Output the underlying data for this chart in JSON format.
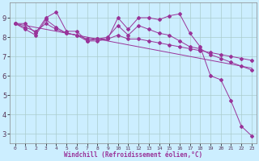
{
  "xlabel": "Windchill (Refroidissement éolien,°C)",
  "bg_color": "#cceeff",
  "line_color": "#993399",
  "grid_color": "#aacccc",
  "x_ticks": [
    0,
    1,
    2,
    3,
    4,
    5,
    6,
    7,
    8,
    9,
    10,
    11,
    12,
    13,
    14,
    15,
    16,
    17,
    18,
    19,
    20,
    21,
    22,
    23
  ],
  "y_ticks": [
    3,
    4,
    5,
    6,
    7,
    8,
    9
  ],
  "xlim": [
    -0.5,
    23.5
  ],
  "ylim": [
    2.5,
    9.8
  ],
  "series1": {
    "x": [
      0,
      1,
      2,
      3,
      4,
      5,
      6,
      7,
      8,
      9,
      10,
      11,
      12,
      13,
      14,
      15,
      16,
      17,
      18,
      19,
      20,
      21,
      22,
      23
    ],
    "y": [
      8.7,
      8.7,
      8.2,
      9.0,
      9.3,
      8.3,
      8.3,
      7.8,
      7.8,
      7.9,
      9.0,
      8.4,
      9.0,
      9.0,
      8.9,
      9.1,
      9.2,
      8.2,
      7.5,
      6.0,
      5.8,
      4.7,
      3.4,
      2.9
    ]
  },
  "series2": {
    "x": [
      0,
      1,
      2,
      3,
      4,
      5,
      6,
      7,
      8,
      9,
      10,
      11,
      12,
      13,
      14,
      15,
      16,
      17,
      18,
      19,
      20,
      21,
      22,
      23
    ],
    "y": [
      8.7,
      8.4,
      8.1,
      8.9,
      8.5,
      8.2,
      8.1,
      7.8,
      7.9,
      8.0,
      8.6,
      8.1,
      8.6,
      8.4,
      8.2,
      8.1,
      7.8,
      7.5,
      7.4,
      7.1,
      6.9,
      6.7,
      6.5,
      6.3
    ]
  },
  "series3": {
    "x": [
      0,
      1,
      2,
      3,
      4,
      5,
      6,
      7,
      8,
      9,
      10,
      11,
      12,
      13,
      14,
      15,
      16,
      17,
      18,
      19,
      20,
      21,
      22,
      23
    ],
    "y": [
      8.7,
      8.5,
      8.3,
      8.7,
      8.4,
      8.2,
      8.1,
      7.9,
      7.9,
      7.9,
      8.1,
      7.9,
      7.9,
      7.8,
      7.7,
      7.6,
      7.5,
      7.4,
      7.3,
      7.2,
      7.1,
      7.0,
      6.9,
      6.8
    ]
  },
  "series4": {
    "x": [
      0,
      1,
      2,
      3,
      4,
      5,
      6,
      7,
      8,
      9,
      10,
      11,
      12,
      13,
      14,
      15,
      16,
      17,
      18,
      19,
      20,
      21,
      22,
      23
    ],
    "y": [
      8.7,
      8.6,
      8.5,
      8.4,
      8.3,
      8.2,
      8.1,
      8.0,
      7.9,
      7.8,
      7.7,
      7.6,
      7.5,
      7.4,
      7.3,
      7.2,
      7.1,
      7.0,
      6.9,
      6.8,
      6.7,
      6.6,
      6.5,
      6.4
    ]
  }
}
